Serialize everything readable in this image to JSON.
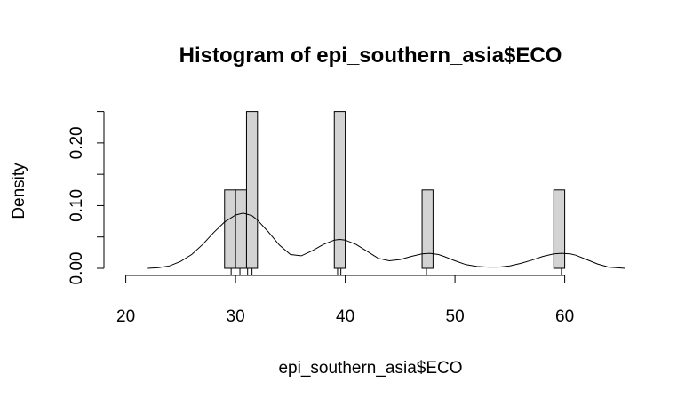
{
  "chart_data": {
    "type": "bar",
    "title": "Histogram of epi_southern_asia$ECO",
    "xlabel": "epi_southern_asia$ECO",
    "ylabel": "Density",
    "xlim": [
      20,
      65
    ],
    "ylim": [
      0,
      0.25
    ],
    "x_ticks": [
      "20",
      "30",
      "40",
      "50",
      "60"
    ],
    "y_ticks": [
      "0.00",
      "0.10",
      "0.20"
    ],
    "bins": [
      {
        "start": 29,
        "end": 30,
        "density": 0.125
      },
      {
        "start": 30,
        "end": 31,
        "density": 0.125
      },
      {
        "start": 31,
        "end": 32,
        "density": 0.25
      },
      {
        "start": 39,
        "end": 40,
        "density": 0.25
      },
      {
        "start": 47,
        "end": 48,
        "density": 0.125
      },
      {
        "start": 59,
        "end": 60,
        "density": 0.125
      }
    ],
    "rug": [
      29.6,
      30.4,
      31.1,
      31.5,
      39.3,
      39.6,
      47.4,
      59.7
    ],
    "density_curve": {
      "x": [
        22,
        23,
        24,
        25,
        26,
        27,
        28,
        29,
        30,
        30.7,
        31.5,
        32,
        33,
        34,
        35,
        36,
        37,
        38,
        39,
        39.5,
        40,
        41,
        42,
        43,
        44,
        45,
        46,
        47,
        47.7,
        48.5,
        49,
        50,
        51,
        52,
        53,
        54,
        55,
        56,
        57,
        58,
        59,
        59.7,
        60.5,
        61,
        62,
        63,
        64,
        65.5
      ],
      "y": [
        0.0,
        0.001,
        0.004,
        0.011,
        0.022,
        0.038,
        0.057,
        0.074,
        0.085,
        0.088,
        0.084,
        0.077,
        0.058,
        0.037,
        0.022,
        0.02,
        0.028,
        0.038,
        0.045,
        0.046,
        0.045,
        0.038,
        0.027,
        0.016,
        0.012,
        0.014,
        0.019,
        0.023,
        0.024,
        0.022,
        0.019,
        0.012,
        0.006,
        0.003,
        0.002,
        0.002,
        0.004,
        0.008,
        0.013,
        0.019,
        0.023,
        0.024,
        0.023,
        0.021,
        0.014,
        0.007,
        0.002,
        0.0
      ]
    }
  }
}
